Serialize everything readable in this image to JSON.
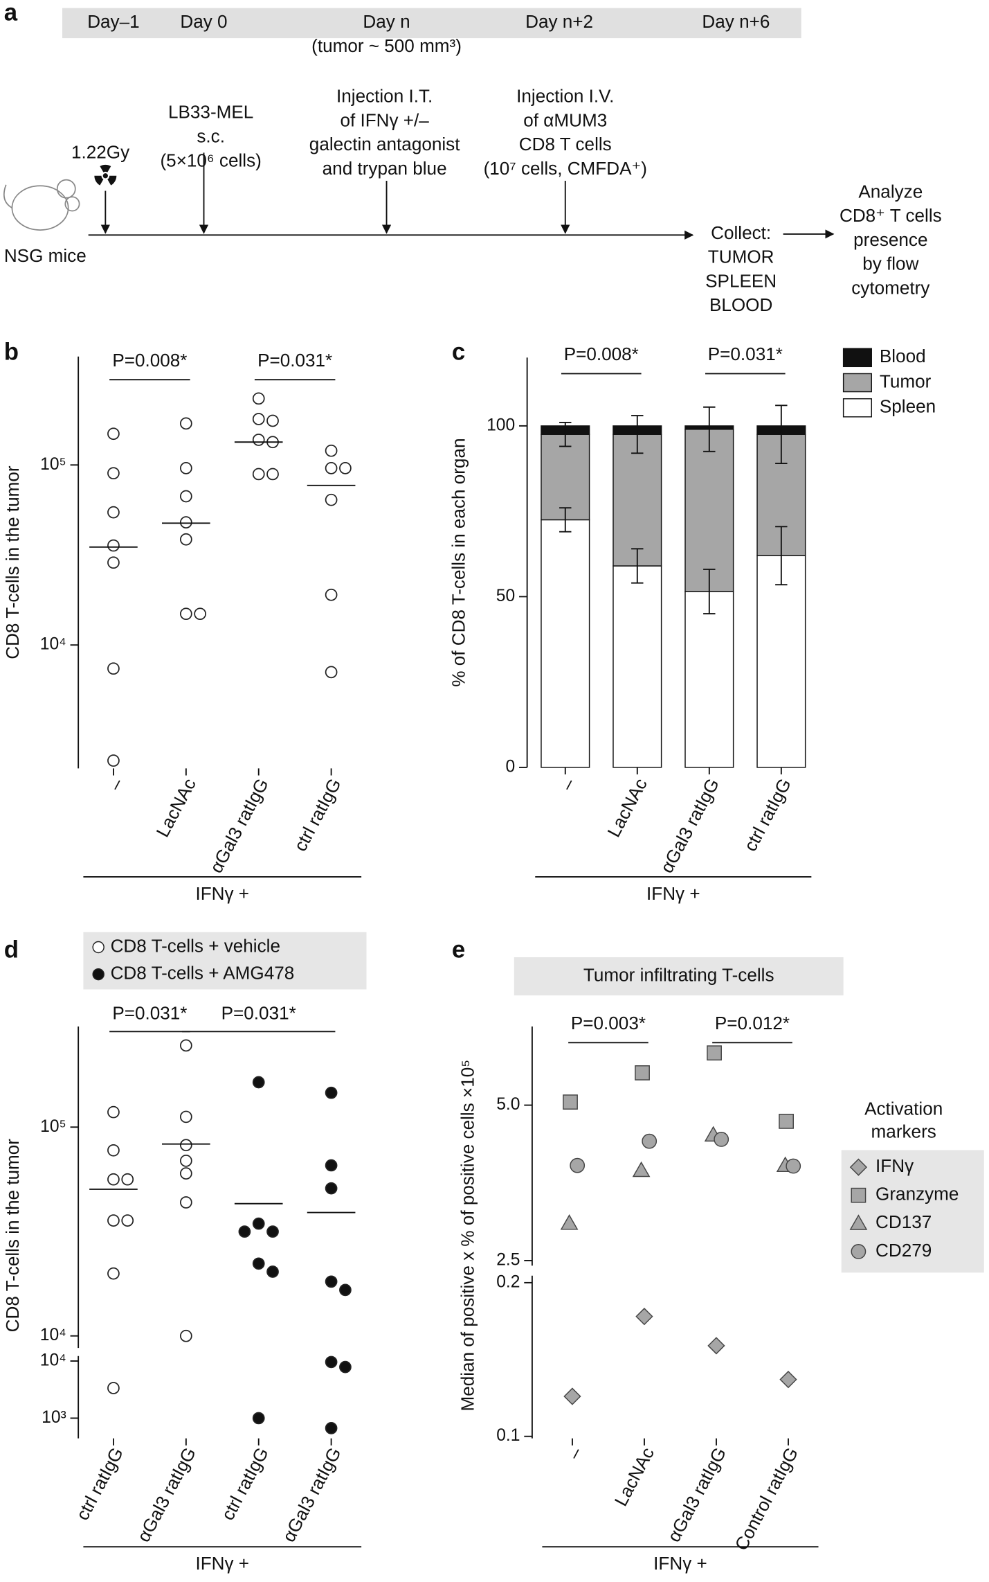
{
  "timeline": {
    "panel": "a",
    "days": [
      "Day–1",
      "Day 0",
      "Day n",
      "Day n+2",
      "Day n+6"
    ],
    "day_note": "(tumor ~ 500 mm³)",
    "mouse_label": "NSG mice",
    "events": [
      [
        "1.22Gy"
      ],
      [
        "LB33-MEL",
        "s.c.",
        "(5×10⁶ cells)"
      ],
      [
        "Injection I.T.",
        "of IFNγ +/–",
        "galectin antagonist",
        "and trypan blue"
      ],
      [
        "Injection I.V.",
        "of αMUM3",
        "CD8 T cells",
        "(10⁷ cells, CMFDA⁺)"
      ]
    ],
    "collect": [
      "Collect:",
      "TUMOR",
      "SPLEEN",
      "BLOOD"
    ],
    "analyze": [
      "Analyze",
      "CD8⁺ T cells",
      "presence",
      "by flow",
      "cytometry"
    ]
  },
  "chart_data": [
    {
      "panel": "b",
      "type": "dot",
      "ylabel": "CD8 T-cells in the tumor",
      "categories": [
        "–",
        "LacNAc",
        "αGal3 ratIgG",
        "ctrl ratIgG"
      ],
      "group_label": "IFNγ +",
      "values": [
        [
          149000,
          90000,
          54600,
          35700,
          28700,
          7400,
          2280
        ],
        [
          170000,
          96000,
          67000,
          48000,
          38600,
          14900,
          14900
        ],
        [
          234000,
          180000,
          176000,
          138000,
          134000,
          89000,
          89000
        ],
        [
          120000,
          96000,
          96000,
          64000,
          19000,
          7070
        ]
      ],
      "medians": [
        35000,
        47500,
        134000,
        77000
      ],
      "color": "#ffffff",
      "log": true,
      "ylim": [
        2200,
        400000
      ],
      "yticks": [
        {
          "value": 10000,
          "label": "10⁴"
        },
        {
          "value": 100000,
          "label": "10⁵"
        }
      ],
      "annotations": [
        {
          "text": "P=0.008*",
          "from": 0,
          "to": 1
        },
        {
          "text": "P=0.031*",
          "from": 2,
          "to": 3
        }
      ]
    },
    {
      "panel": "c",
      "type": "stacked_bar",
      "ylabel": "% of CD8 T-cells in each organ",
      "categories": [
        "–",
        "LacNAc",
        "αGal3 ratIgG",
        "ctrl ratIgG"
      ],
      "group_label": "IFNγ +",
      "series": [
        {
          "name": "Spleen",
          "color": "#ffffff",
          "values": [
            72.5,
            59,
            51.5,
            62
          ],
          "errors": [
            3.5,
            5,
            6.5,
            8.5
          ]
        },
        {
          "name": "Tumor",
          "color": "#a6a6a6",
          "values": [
            25,
            38.5,
            47.5,
            35.5
          ],
          "errors": [
            3.5,
            5.5,
            6.5,
            8.5
          ]
        },
        {
          "name": "Blood",
          "color": "#111111",
          "values": [
            2.5,
            2.5,
            1,
            2.5
          ]
        }
      ],
      "ylim": [
        0,
        120
      ],
      "yticks": [
        0,
        50,
        100
      ],
      "annotations": [
        {
          "text": "P=0.008*",
          "from": 0,
          "to": 1
        },
        {
          "text": "P=0.031*",
          "from": 2,
          "to": 3
        }
      ]
    },
    {
      "panel": "d",
      "type": "dot",
      "ylabel": "CD8 T-cells in the tumor",
      "categories": [
        "ctrl ratIgG",
        "αGal3 ratIgG",
        "ctrl ratIgG",
        "αGal3 ratIgG"
      ],
      "group_label": "IFNγ +",
      "series": [
        {
          "name": "CD8 T-cells + vehicle",
          "color": "#ffffff"
        },
        {
          "name": "CD8 T-cells + AMG478",
          "color": "#111111"
        }
      ],
      "category_series": [
        0,
        0,
        1,
        1
      ],
      "values": [
        [
          118000,
          77400,
          56200,
          56200,
          35700,
          35700,
          19900,
          3360
        ],
        [
          246000,
          112000,
          82000,
          69000,
          60000,
          43600,
          10000
        ],
        [
          164000,
          34500,
          31600,
          31600,
          22200,
          20300,
          1000
        ],
        [
          146000,
          65600,
          50900,
          18200,
          16600,
          9600,
          7850,
          668
        ]
      ],
      "medians": [
        50400,
        83000,
        43000,
        39000
      ],
      "log": true,
      "y_segments": [
        {
          "ylim": [
            480,
            10000
          ],
          "yticks": [
            {
              "value": 1000,
              "label": "10³"
            },
            {
              "value": 10000,
              "label": "10⁴"
            }
          ]
        },
        {
          "ylim": [
            10000,
            290000
          ],
          "yticks": [
            {
              "value": 10000,
              "label": "10⁴"
            },
            {
              "value": 100000,
              "label": "10⁵"
            }
          ]
        }
      ],
      "annotations": [
        {
          "text": "P=0.031*",
          "from": 0,
          "to": 1
        },
        {
          "text": "P=0.031*",
          "from": 1,
          "to": 3
        }
      ]
    },
    {
      "panel": "e",
      "type": "scatter",
      "title": "Tumor infiltrating T-cells",
      "ylabel": "Median of positive x % of positive cells ×10⁵",
      "categories": [
        "–",
        "LacNAc",
        "αGal3 ratIgG",
        "Control ratIgG"
      ],
      "group_label": "IFNγ +",
      "legend_title": [
        "Activation",
        "markers"
      ],
      "series": [
        {
          "name": "IFNγ",
          "marker": "diamond",
          "color": "#a6a6a6",
          "values": [
            0.126,
            0.178,
            0.159,
            0.137
          ]
        },
        {
          "name": "Granzyme",
          "marker": "square",
          "color": "#a6a6a6",
          "values": [
            5.05,
            5.52,
            5.84,
            4.74
          ]
        },
        {
          "name": "CD137",
          "marker": "triangle",
          "color": "#a6a6a6",
          "values": [
            3.1,
            3.95,
            4.52,
            4.03
          ]
        },
        {
          "name": "CD279",
          "marker": "circle",
          "color": "#a6a6a6",
          "values": [
            4.03,
            4.42,
            4.45,
            4.02
          ]
        }
      ],
      "y_segments": [
        {
          "ylim": [
            0.1,
            0.2
          ],
          "yticks": [
            0.1,
            0.2
          ]
        },
        {
          "ylim": [
            2.5,
            6.2
          ],
          "yticks": [
            2.5,
            {
              "value": 5,
              "label": "5.0"
            }
          ]
        }
      ],
      "annotations": [
        {
          "text": "P=0.003*",
          "from": 0,
          "to": 1
        },
        {
          "text": "P=0.012*",
          "from": 2,
          "to": 3
        }
      ]
    }
  ]
}
